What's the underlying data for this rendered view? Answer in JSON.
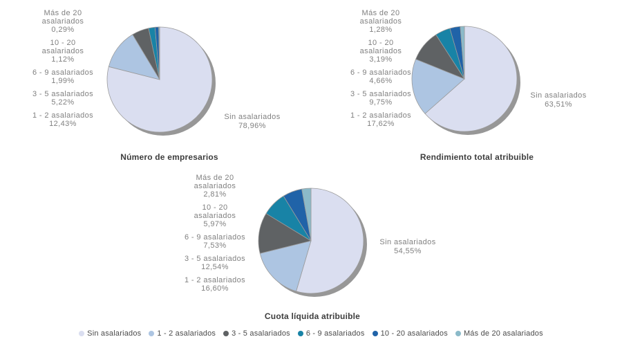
{
  "colors": {
    "shadow": "#979797",
    "slice_border": "#9b9b9b",
    "label_text": "#808080",
    "title_text": "#3d3d3d",
    "legend_text": "#4a4a4a",
    "background": "#ffffff"
  },
  "palette": {
    "Sin asalariados": "#dadef0",
    "1 - 2 asalariados": "#adc5e2",
    "3 - 5 asalariados": "#5f6264",
    "6 - 9 asalariados": "#1883a6",
    "10 - 20 asalariados": "#2063a8",
    "Más de 20 asalariados": "#8bbac9"
  },
  "label_line_breaks": {
    "10 - 20 asalariados": [
      "10 - 20",
      "asalariados"
    ],
    "Más de 20 asalariados": [
      "Más de 20",
      "asalariados"
    ]
  },
  "legend": {
    "items": [
      "Sin asalariados",
      "1 - 2 asalariados",
      "3 - 5 asalariados",
      "6 - 9 asalariados",
      "10 - 20 asalariados",
      "Más de 20 asalariados"
    ]
  },
  "chart_data": [
    {
      "type": "pie",
      "title": "Número de empresarios",
      "start_angle": "top",
      "direction": "clockwise",
      "labels": [
        "Sin asalariados",
        "1 - 2 asalariados",
        "3 - 5 asalariados",
        "6 - 9 asalariados",
        "10 - 20 asalariados",
        "Más de 20 asalariados"
      ],
      "values": [
        78.96,
        12.43,
        5.22,
        1.99,
        1.12,
        0.29
      ],
      "value_labels": [
        "78,96%",
        "12,43%",
        "5,22%",
        "1,99%",
        "1,12%",
        "0,29%"
      ]
    },
    {
      "type": "pie",
      "title": "Rendimiento total atribuible",
      "start_angle": "top",
      "direction": "clockwise",
      "labels": [
        "Sin asalariados",
        "1 - 2 asalariados",
        "3 - 5 asalariados",
        "6 - 9 asalariados",
        "10 - 20 asalariados",
        "Más de 20 asalariados"
      ],
      "values": [
        63.51,
        17.62,
        9.75,
        4.66,
        3.19,
        1.28
      ],
      "value_labels": [
        "63,51%",
        "17,62%",
        "9,75%",
        "4,66%",
        "3,19%",
        "1,28%"
      ]
    },
    {
      "type": "pie",
      "title": "Cuota líquida atribuible",
      "start_angle": "top",
      "direction": "clockwise",
      "labels": [
        "Sin asalariados",
        "1 - 2 asalariados",
        "3 - 5 asalariados",
        "6 - 9 asalariados",
        "10 - 20 asalariados",
        "Más de 20 asalariados"
      ],
      "values": [
        54.55,
        16.6,
        12.54,
        7.53,
        5.97,
        2.81
      ],
      "value_labels": [
        "54,55%",
        "16,60%",
        "12,54%",
        "7,53%",
        "5,97%",
        "2,81%"
      ]
    }
  ]
}
